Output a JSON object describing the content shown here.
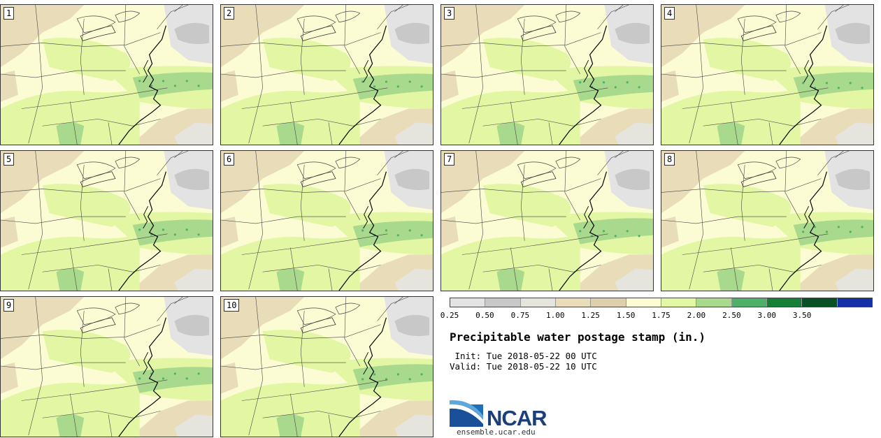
{
  "panels": [
    {
      "label": "1"
    },
    {
      "label": "2"
    },
    {
      "label": "3"
    },
    {
      "label": "4"
    },
    {
      "label": "5"
    },
    {
      "label": "6"
    },
    {
      "label": "7"
    },
    {
      "label": "8"
    },
    {
      "label": "9"
    },
    {
      "label": "10"
    }
  ],
  "colorbar": {
    "colors": [
      "#e3e3e3",
      "#c8c8c8",
      "#e5e4dd",
      "#e8dcb9",
      "#ddd1ad",
      "#fcfcd4",
      "#e3f6a3",
      "#a8d98c",
      "#4fb06a",
      "#157f37",
      "#085126",
      "#1530a6"
    ],
    "ticks": [
      "0.25",
      "0.50",
      "0.75",
      "1.00",
      "1.25",
      "1.50",
      "1.75",
      "2.00",
      "2.50",
      "3.00",
      "3.50"
    ]
  },
  "title": "Precipitable water postage stamp (in.)",
  "init": " Init: Tue 2018-05-22 00 UTC",
  "valid": "Valid: Tue 2018-05-22 10 UTC",
  "logo": {
    "text": "NCAR",
    "url": "ensemble.ucar.edu"
  }
}
